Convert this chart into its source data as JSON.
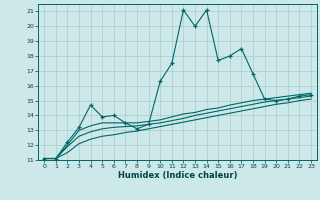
{
  "title": "",
  "xlabel": "Humidex (Indice chaleur)",
  "ylabel": "",
  "bg_color": "#cde8e8",
  "grid_color": "#aacccc",
  "line_color": "#006666",
  "xlim": [
    -0.5,
    23.5
  ],
  "ylim": [
    11,
    21.5
  ],
  "xticks": [
    0,
    1,
    2,
    3,
    4,
    5,
    6,
    7,
    8,
    9,
    10,
    11,
    12,
    13,
    14,
    15,
    16,
    17,
    18,
    19,
    20,
    21,
    22,
    23
  ],
  "yticks": [
    11,
    12,
    13,
    14,
    15,
    16,
    17,
    18,
    19,
    20,
    21
  ],
  "series_main": {
    "x": [
      0,
      1,
      2,
      3,
      4,
      5,
      6,
      7,
      8,
      9,
      10,
      11,
      12,
      13,
      14,
      15,
      16,
      17,
      18,
      19,
      20,
      21,
      22,
      23
    ],
    "y": [
      11.1,
      11.1,
      12.2,
      13.2,
      14.7,
      13.9,
      14.0,
      13.5,
      13.1,
      13.4,
      16.3,
      17.5,
      21.1,
      20.0,
      21.1,
      17.7,
      18.0,
      18.5,
      16.8,
      15.1,
      15.0,
      15.1,
      15.3,
      15.4
    ]
  },
  "series_lower1": {
    "x": [
      0,
      1,
      2,
      3,
      4,
      5,
      6,
      7,
      8,
      9,
      10,
      11,
      12,
      13,
      14,
      15,
      16,
      17,
      18,
      19,
      20,
      21,
      22,
      23
    ],
    "y": [
      11.1,
      11.1,
      12.0,
      13.0,
      13.3,
      13.5,
      13.5,
      13.5,
      13.5,
      13.6,
      13.7,
      13.9,
      14.1,
      14.2,
      14.4,
      14.5,
      14.7,
      14.85,
      15.0,
      15.1,
      15.2,
      15.3,
      15.4,
      15.5
    ]
  },
  "series_lower2": {
    "x": [
      0,
      1,
      2,
      3,
      4,
      5,
      6,
      7,
      8,
      9,
      10,
      11,
      12,
      13,
      14,
      15,
      16,
      17,
      18,
      19,
      20,
      21,
      22,
      23
    ],
    "y": [
      11.1,
      11.1,
      11.9,
      12.6,
      12.9,
      13.1,
      13.2,
      13.25,
      13.3,
      13.4,
      13.5,
      13.65,
      13.8,
      14.0,
      14.15,
      14.3,
      14.45,
      14.6,
      14.75,
      14.9,
      15.0,
      15.1,
      15.2,
      15.3
    ]
  },
  "series_lower3": {
    "x": [
      0,
      1,
      2,
      3,
      4,
      5,
      6,
      7,
      8,
      9,
      10,
      11,
      12,
      13,
      14,
      15,
      16,
      17,
      18,
      19,
      20,
      21,
      22,
      23
    ],
    "y": [
      11.1,
      11.1,
      11.5,
      12.1,
      12.4,
      12.6,
      12.7,
      12.85,
      12.95,
      13.1,
      13.25,
      13.4,
      13.55,
      13.7,
      13.85,
      14.0,
      14.15,
      14.3,
      14.45,
      14.6,
      14.75,
      14.85,
      15.0,
      15.1
    ]
  }
}
